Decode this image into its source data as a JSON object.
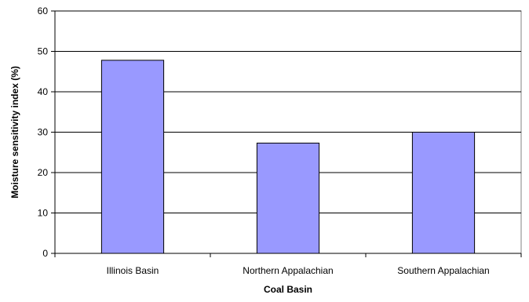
{
  "chart_data": {
    "type": "bar",
    "categories": [
      "Illinois Basin",
      "Northern Appalachian",
      "Southern Appalachian"
    ],
    "values": [
      47.8,
      27.3,
      30.0
    ],
    "title": "",
    "xlabel": "Coal Basin",
    "ylabel": "Moisture sensitivity index (%)",
    "ylim": [
      0,
      60
    ],
    "yticks": [
      0,
      10,
      20,
      30,
      40,
      50,
      60
    ],
    "grid": true,
    "legend": "none",
    "colors": {
      "bar_fill": "#9999ff",
      "bar_stroke": "#000000",
      "grid": "#000000",
      "axis": "#000000",
      "plot_border": "#808080"
    }
  }
}
